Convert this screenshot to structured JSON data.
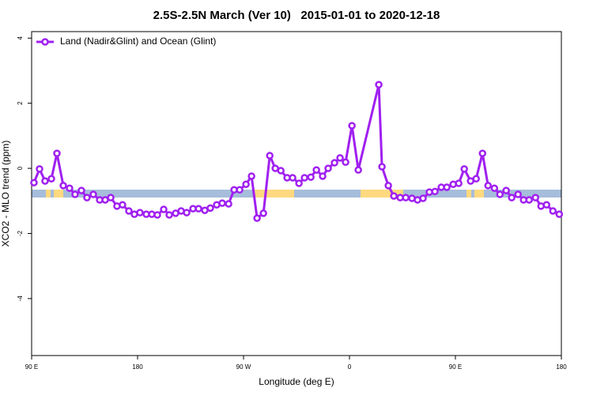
{
  "chart_data": {
    "type": "line",
    "title": "2.5S-2.5N March (Ver 10)   2015-01-01 to 2020-12-18",
    "x_label": "Longitude (deg E)",
    "y_label": "XCO2 - MLO trend (ppm)",
    "xlim": [
      90,
      540
    ],
    "ylim": [
      -5.75,
      4.2
    ],
    "xticks": [
      {
        "value": 90,
        "label": "90 E"
      },
      180,
      {
        "value": 270,
        "label": "90 W"
      },
      {
        "value": 360,
        "label": "0"
      },
      {
        "value": 450,
        "label": "90 E"
      },
      {
        "value": 540,
        "label": "180"
      }
    ],
    "yticks": [
      -4,
      -2,
      0,
      2,
      4
    ],
    "legend": "top-left",
    "series": [
      {
        "name": "Land (Nadir&Glint) and Ocean (Glint)",
        "color": "#a020f0",
        "x": [
          92.0,
          96.7,
          101.4,
          106.8,
          111.5,
          116.9,
          122.2,
          126.9,
          132.3,
          137.0,
          142.4,
          147.8,
          152.5,
          157.2,
          162.5,
          167.2,
          172.6,
          177.3,
          182.0,
          187.4,
          192.1,
          196.8,
          202.2,
          206.9,
          212.3,
          217.0,
          221.7,
          227.1,
          231.8,
          237.1,
          241.8,
          247.2,
          251.9,
          257.3,
          262.0,
          266.7,
          272.1,
          276.8,
          281.5,
          286.9,
          292.3,
          297.0,
          301.7,
          307.0,
          311.7,
          317.1,
          321.8,
          327.2,
          331.9,
          337.2,
          341.9,
          347.3,
          352.0,
          356.7,
          362.1,
          367.5,
          384.9,
          387.6,
          393.0,
          397.7,
          403.1,
          407.8,
          413.1,
          417.8,
          422.5,
          427.9,
          432.6,
          438.0,
          442.7,
          448.1,
          452.8,
          457.5,
          462.9,
          467.6,
          473.0,
          477.7,
          483.1,
          487.8,
          493.1,
          497.8,
          503.2,
          507.9,
          512.6,
          518.0,
          522.7,
          527.4,
          532.8,
          538.2
        ],
        "values": [
          -0.44,
          -0.02,
          -0.39,
          -0.32,
          0.46,
          -0.53,
          -0.61,
          -0.8,
          -0.68,
          -0.9,
          -0.8,
          -0.97,
          -0.97,
          -0.9,
          -1.16,
          -1.12,
          -1.31,
          -1.41,
          -1.36,
          -1.41,
          -1.41,
          -1.43,
          -1.26,
          -1.43,
          -1.38,
          -1.31,
          -1.36,
          -1.24,
          -1.24,
          -1.29,
          -1.22,
          -1.12,
          -1.07,
          -1.09,
          -0.66,
          -0.66,
          -0.49,
          -0.24,
          -1.53,
          -1.38,
          0.39,
          0.0,
          -0.07,
          -0.29,
          -0.29,
          -0.46,
          -0.29,
          -0.27,
          -0.05,
          -0.24,
          0.0,
          0.17,
          0.32,
          0.19,
          1.31,
          -0.05,
          2.57,
          0.05,
          -0.53,
          -0.85,
          -0.9,
          -0.9,
          -0.92,
          -0.97,
          -0.92,
          -0.73,
          -0.71,
          -0.58,
          -0.58,
          -0.49,
          -0.46,
          -0.02,
          -0.39,
          -0.32,
          0.46,
          -0.53,
          -0.61,
          -0.8,
          -0.68,
          -0.9,
          -0.8,
          -0.97,
          -0.97,
          -0.9,
          -1.16,
          -1.12,
          -1.31,
          -1.41
        ]
      }
    ]
  }
}
